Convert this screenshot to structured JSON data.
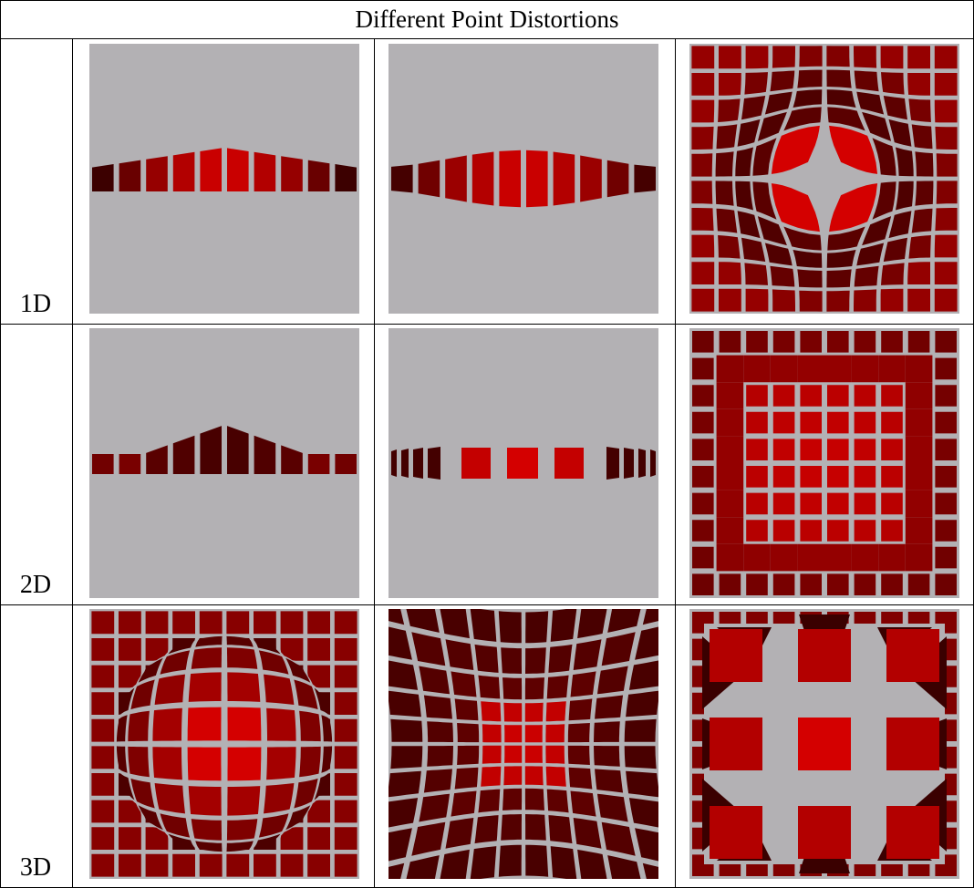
{
  "title": "Different Point Distortions",
  "rows": [
    {
      "label": "1D",
      "panels": [
        {
          "dimension": "1D",
          "variant": "bulge-strip",
          "strength": 0.35
        },
        {
          "dimension": "1D",
          "variant": "lens-strip",
          "strength": 0.6
        },
        {
          "dimension": "1D",
          "variant": "fisheye-grid",
          "strength": 0.55
        }
      ]
    },
    {
      "label": "2D",
      "panels": [
        {
          "dimension": "2D",
          "variant": "bulge-strip-2d",
          "strength": 0.45
        },
        {
          "dimension": "2D",
          "variant": "flat-lens-strip",
          "strength": 0.6
        },
        {
          "dimension": "2D",
          "variant": "blocky-grid",
          "strength": 0.5
        }
      ]
    },
    {
      "label": "3D",
      "panels": [
        {
          "dimension": "3D",
          "variant": "sphere-grid",
          "strength": 0.6
        },
        {
          "dimension": "3D",
          "variant": "pincushion-grid",
          "strength": 0.5
        },
        {
          "dimension": "3D",
          "variant": "extruded-grid",
          "strength": 0.8
        }
      ]
    }
  ],
  "colors": {
    "background": "#b3b1b4",
    "cell_bright": "#d40000",
    "cell_mid": "#a00000",
    "cell_dark": "#5a0000",
    "cell_darkest": "#3a0000"
  }
}
